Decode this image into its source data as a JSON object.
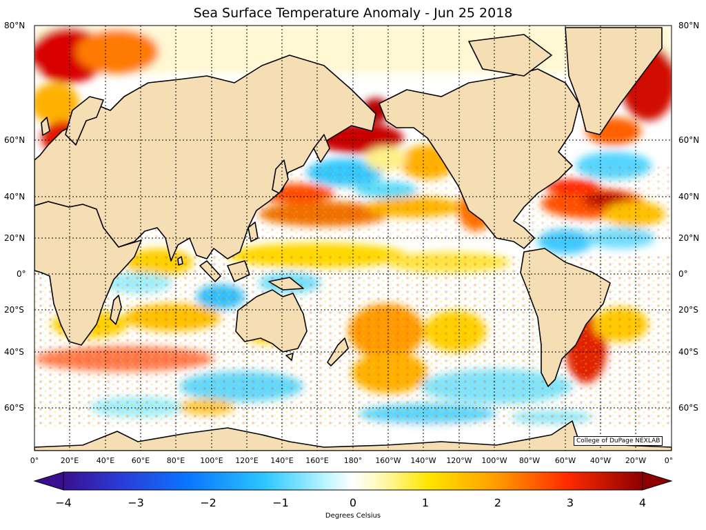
{
  "title": "Sea Surface Temperature Anomaly - Jun 25 2018",
  "credit": "College of DuPage NEXLAB",
  "latitude_labels": [
    "80°N",
    "60°N",
    "40°N",
    "20°N",
    "0°",
    "20°S",
    "40°S",
    "60°S"
  ],
  "longitude_labels": [
    "0°",
    "20°E",
    "40°E",
    "60°E",
    "80°E",
    "100°E",
    "120°E",
    "140°E",
    "160°E",
    "180°",
    "160°W",
    "140°W",
    "120°W",
    "100°W",
    "80°W",
    "60°W",
    "40°W",
    "20°W",
    "0°"
  ],
  "colorbar": {
    "ticks": [
      "−4",
      "−3",
      "−2",
      "−1",
      "0",
      "1",
      "2",
      "3",
      "4"
    ],
    "label": "Degrees Celsius",
    "range": [
      -4,
      4
    ],
    "extend": "both"
  },
  "colors": {
    "land": "#f5deb3",
    "ocean_neutral": "#ffffff",
    "coastline": "#000000",
    "warm_extreme": "#b40000",
    "cold_extreme": "#3a0f8f"
  }
}
